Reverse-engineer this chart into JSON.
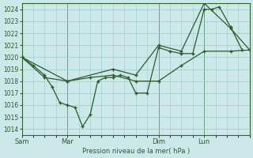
{
  "background_color": "#cce8e8",
  "grid_color": "#99cccc",
  "line_color": "#2d5a2d",
  "xlabel": "Pression niveau de la mer( hPa )",
  "ylim": [
    1013.5,
    1024.5
  ],
  "yticks": [
    1014,
    1015,
    1016,
    1017,
    1018,
    1019,
    1020,
    1021,
    1022,
    1023,
    1024
  ],
  "xtick_labels": [
    "Sam",
    "Mar",
    "Dim",
    "Lun"
  ],
  "xtick_positions": [
    0,
    24,
    72,
    96
  ],
  "xlim": [
    0,
    120
  ],
  "vlines": [
    0,
    24,
    72,
    96
  ],
  "series1_x": [
    0,
    6,
    12,
    16,
    20,
    24,
    28,
    32,
    36,
    40,
    44,
    48,
    52,
    56,
    60,
    66,
    72,
    78,
    84,
    90,
    96,
    100,
    104,
    110,
    116
  ],
  "series1_y": [
    1020.0,
    1019.3,
    1018.5,
    1017.5,
    1016.2,
    1016.0,
    1015.8,
    1014.2,
    1015.2,
    1018.0,
    1018.3,
    1018.3,
    1018.5,
    1018.3,
    1017.0,
    1017.0,
    1020.8,
    1020.5,
    1020.3,
    1020.3,
    1024.0,
    1024.0,
    1024.2,
    1022.5,
    1020.6
  ],
  "series2_x": [
    0,
    12,
    24,
    36,
    48,
    60,
    72,
    84,
    96,
    110,
    120
  ],
  "series2_y": [
    1020.0,
    1018.3,
    1018.0,
    1018.3,
    1018.5,
    1018.0,
    1018.0,
    1019.3,
    1020.5,
    1020.5,
    1020.6
  ],
  "series3_x": [
    0,
    24,
    48,
    60,
    72,
    84,
    96,
    110,
    120
  ],
  "series3_y": [
    1020.0,
    1018.0,
    1019.0,
    1018.5,
    1021.0,
    1020.5,
    1024.5,
    1022.4,
    1020.6
  ]
}
